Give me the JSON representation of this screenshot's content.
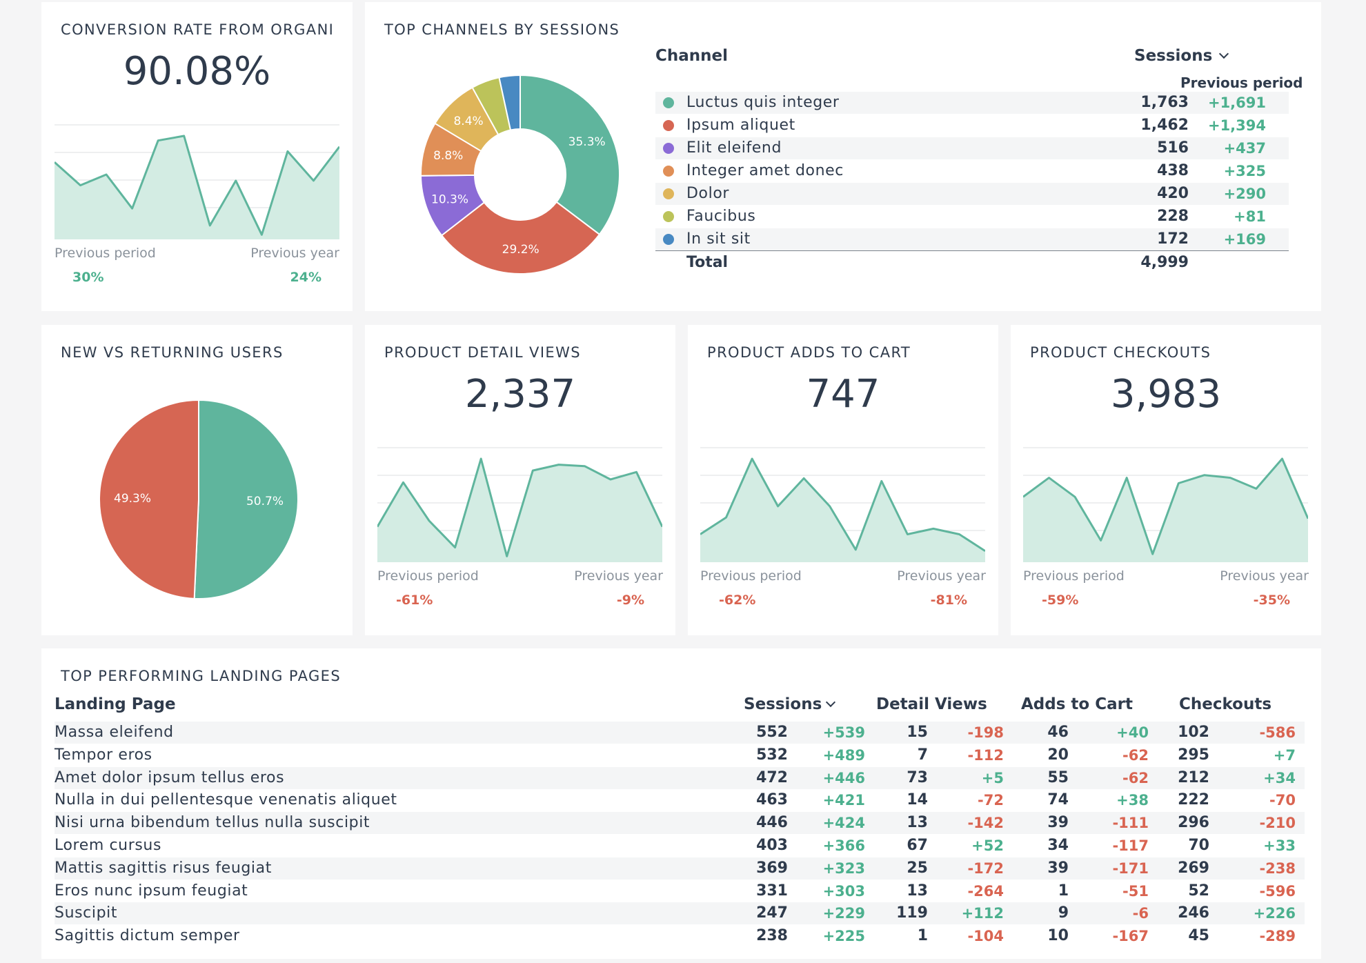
{
  "colors": {
    "green": "#5fb59d",
    "red": "#d66653",
    "purple": "#8b6bd6",
    "orange": "#e08f57",
    "yellow": "#dfb55a",
    "olive": "#bcc35a",
    "blue": "#4889c2",
    "positive": "#4cb08e",
    "negative": "#d96451"
  },
  "conversion": {
    "title": "CONVERSION RATE FROM ORGANI",
    "value": "90.08%",
    "prev_period_label": "Previous period",
    "prev_year_label": "Previous year",
    "prev_period_value": "30%",
    "prev_year_value": "24%",
    "spark": [
      5,
      3.5,
      4.2,
      2,
      6.4,
      6.7,
      0.9,
      3.8,
      0.3,
      5.7,
      3.8,
      6
    ]
  },
  "channels": {
    "title": "TOP CHANNELS BY SESSIONS",
    "col_channel": "Channel",
    "col_sessions": "Sessions",
    "col_previous": "Previous period",
    "total_label": "Total",
    "total_value": "4,999",
    "rows": [
      {
        "name": "Luctus quis integer",
        "sessions": "1,763",
        "delta": "+1,691",
        "color": "#5fb59d"
      },
      {
        "name": "Ipsum aliquet",
        "sessions": "1,462",
        "delta": "+1,394",
        "color": "#d66653"
      },
      {
        "name": "Elit eleifend",
        "sessions": "516",
        "delta": "+437",
        "color": "#8b6bd6"
      },
      {
        "name": "Integer amet donec",
        "sessions": "438",
        "delta": "+325",
        "color": "#e08f57"
      },
      {
        "name": "Dolor",
        "sessions": "420",
        "delta": "+290",
        "color": "#dfb55a"
      },
      {
        "name": "Faucibus",
        "sessions": "228",
        "delta": "+81",
        "color": "#bcc35a"
      },
      {
        "name": "In sit sit",
        "sessions": "172",
        "delta": "+169",
        "color": "#4889c2"
      }
    ]
  },
  "new_vs_returning": {
    "title": "NEW VS RETURNING USERS"
  },
  "kpis": [
    {
      "title": "PRODUCT DETAIL VIEWS",
      "value": "2,337",
      "prev_period_label": "Previous period",
      "prev_year_label": "Previous year",
      "prev_period_value": "-61%",
      "prev_year_value": "-9%",
      "spark": [
        1.2,
        2.7,
        1.4,
        0.5,
        3.5,
        0.2,
        3.1,
        3.3,
        3.25,
        2.8,
        3.05,
        1.2
      ]
    },
    {
      "title": "PRODUCT ADDS TO CART",
      "value": "747",
      "prev_period_label": "Previous period",
      "prev_year_label": "Previous year",
      "prev_period_value": "-62%",
      "prev_year_value": "-81%",
      "spark": [
        1,
        1.6,
        3.7,
        2,
        3,
        2,
        0.45,
        2.9,
        1,
        1.2,
        1,
        0.4
      ]
    },
    {
      "title": "PRODUCT CHECKOUTS",
      "value": "3,983",
      "prev_period_label": "Previous period",
      "prev_year_label": "Previous year",
      "prev_period_value": "-59%",
      "prev_year_value": "-35%",
      "spark": [
        2.4,
        3.1,
        2.4,
        0.8,
        3.1,
        0.3,
        2.9,
        3.2,
        3.1,
        2.7,
        3.8,
        1.6
      ]
    }
  ],
  "landing": {
    "title": "TOP PERFORMING LANDING PAGES",
    "col_page": "Landing Page",
    "col_sessions": "Sessions",
    "col_detail": "Detail Views",
    "col_cart": "Adds to Cart",
    "col_checkouts": "Checkouts",
    "rows": [
      {
        "page": "Massa eleifend",
        "s": "552",
        "sd": "+539",
        "d": "15",
        "dd": "-198",
        "a": "46",
        "ad": "+40",
        "c": "102",
        "cd": "-586"
      },
      {
        "page": "Tempor eros",
        "s": "532",
        "sd": "+489",
        "d": "7",
        "dd": "-112",
        "a": "20",
        "ad": "-62",
        "c": "295",
        "cd": "+7"
      },
      {
        "page": "Amet dolor ipsum tellus eros",
        "s": "472",
        "sd": "+446",
        "d": "73",
        "dd": "+5",
        "a": "55",
        "ad": "-62",
        "c": "212",
        "cd": "+34"
      },
      {
        "page": "Nulla in dui pellentesque venenatis aliquet",
        "s": "463",
        "sd": "+421",
        "d": "14",
        "dd": "-72",
        "a": "74",
        "ad": "+38",
        "c": "222",
        "cd": "-70"
      },
      {
        "page": "Nisi urna bibendum tellus nulla suscipit",
        "s": "446",
        "sd": "+424",
        "d": "13",
        "dd": "-142",
        "a": "39",
        "ad": "-111",
        "c": "296",
        "cd": "-210"
      },
      {
        "page": "Lorem cursus",
        "s": "403",
        "sd": "+366",
        "d": "67",
        "dd": "+52",
        "a": "34",
        "ad": "-117",
        "c": "70",
        "cd": "+33"
      },
      {
        "page": "Mattis sagittis risus feugiat",
        "s": "369",
        "sd": "+323",
        "d": "25",
        "dd": "-172",
        "a": "39",
        "ad": "-171",
        "c": "269",
        "cd": "-238"
      },
      {
        "page": "Eros nunc ipsum feugiat",
        "s": "331",
        "sd": "+303",
        "d": "13",
        "dd": "-264",
        "a": "1",
        "ad": "-51",
        "c": "52",
        "cd": "-596"
      },
      {
        "page": "Suscipit",
        "s": "247",
        "sd": "+229",
        "d": "119",
        "dd": "+112",
        "a": "9",
        "ad": "-6",
        "c": "246",
        "cd": "+226"
      },
      {
        "page": "Sagittis dictum semper",
        "s": "238",
        "sd": "+225",
        "d": "1",
        "dd": "-104",
        "a": "10",
        "ad": "-167",
        "c": "45",
        "cd": "-289"
      }
    ]
  },
  "chart_data": [
    {
      "type": "pie",
      "title": "TOP CHANNELS BY SESSIONS",
      "categories": [
        "Luctus quis integer",
        "Ipsum aliquet",
        "Elit eleifend",
        "Integer amet donec",
        "Dolor",
        "Faucibus",
        "In sit sit"
      ],
      "values": [
        35.3,
        29.2,
        10.3,
        8.8,
        8.4,
        4.6,
        3.4
      ],
      "labels": [
        "35.3%",
        "29.2%",
        "10.3%",
        "8.8%",
        "8.4%",
        "",
        ""
      ],
      "donut": true,
      "legend": "table-right"
    },
    {
      "type": "pie",
      "title": "NEW VS RETURNING USERS",
      "categories": [
        "",
        ""
      ],
      "values": [
        50.7,
        49.3
      ],
      "labels": [
        "50.7%",
        "49.3%"
      ]
    }
  ]
}
